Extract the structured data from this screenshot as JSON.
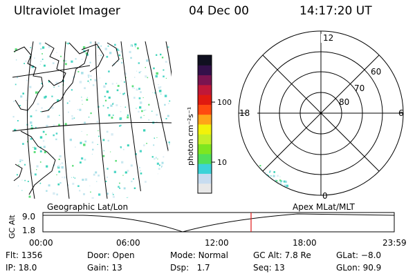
{
  "header": {
    "instrument": "Ultraviolet Imager",
    "date": "04 Dec 00",
    "time": "14:17:20 UT"
  },
  "left_panel": {
    "label": "Geographic Lat/Lon"
  },
  "colorbar": {
    "unit_label": "photon cm⁻²s⁻¹",
    "ticks": [
      "100",
      "10"
    ],
    "colors": [
      "#e8e8e8",
      "#c8dcf0",
      "#3cd3d8",
      "#50e05a",
      "#7ee620",
      "#c4ef28",
      "#f2f20a",
      "#ffa418",
      "#ff4a10",
      "#e01a10",
      "#c01838",
      "#7a1450",
      "#33104a",
      "#101020"
    ]
  },
  "polar_plot": {
    "label": "Apex MLat/MLT",
    "mlt_labels": {
      "top": "12",
      "left": "18",
      "right": "6",
      "bottom": "0"
    },
    "mlat_labels": [
      "60",
      "70",
      "80"
    ]
  },
  "timeline": {
    "y_axis_label": "GC Alt",
    "y_ticks": [
      "9.0",
      "1.8"
    ],
    "x_ticks": [
      "00:00",
      "06:00",
      "12:00",
      "18:00",
      "23:59"
    ],
    "current_time_marker": "14:17:20"
  },
  "status": {
    "row1": [
      {
        "label": "Flt:",
        "value": "1356"
      },
      {
        "label": "Door:",
        "value": "Open"
      },
      {
        "label": "Mode:",
        "value": "Normal"
      },
      {
        "label": "GC Alt:",
        "value": "7.8 Re"
      },
      {
        "label": "GLat:",
        "value": "−8.0"
      }
    ],
    "row2": [
      {
        "label": "IP:",
        "value": "18.0"
      },
      {
        "label": "Gain:",
        "value": "13"
      },
      {
        "label": "Dsp:",
        "value": "1.7"
      },
      {
        "label": "Seq:",
        "value": "13"
      },
      {
        "label": "GLon:",
        "value": "90.9"
      }
    ]
  }
}
